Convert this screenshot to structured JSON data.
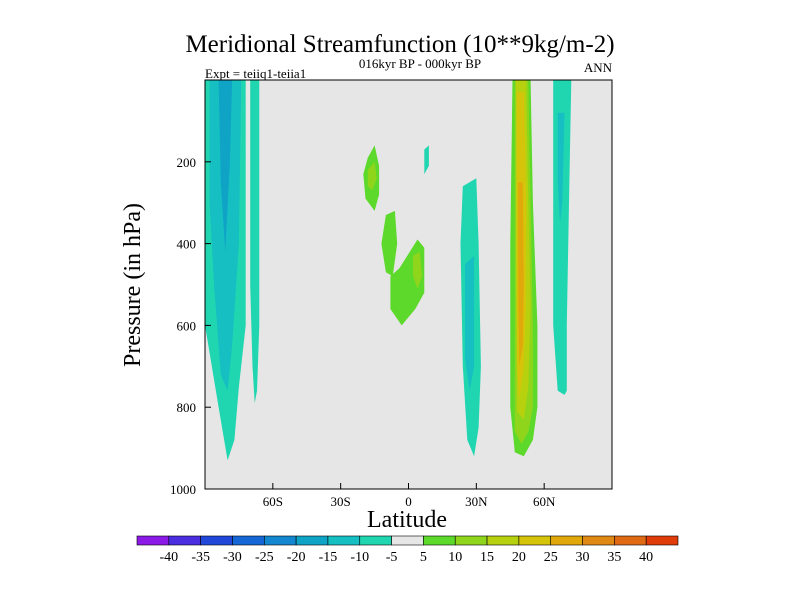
{
  "chart_data": {
    "type": "heatmap",
    "title": "Meridional Streamfunction (10**9kg/m-2)",
    "left_string": "Expt = teiiq1-teiia1",
    "center_string": "016kyr BP - 000kyr BP",
    "right_string": "ANN",
    "xlabel": "Latitude",
    "ylabel": "Pressure (in hPa)",
    "x_ticks": [
      {
        "value": -60,
        "label": "60S"
      },
      {
        "value": -30,
        "label": "30S"
      },
      {
        "value": 0,
        "label": "0"
      },
      {
        "value": 30,
        "label": "30N"
      },
      {
        "value": 60,
        "label": "60N"
      }
    ],
    "y_ticks": [
      {
        "value": 200,
        "label": "200"
      },
      {
        "value": 400,
        "label": "400"
      },
      {
        "value": 600,
        "label": "600"
      },
      {
        "value": 800,
        "label": "800"
      },
      {
        "value": 1000,
        "label": "1000"
      }
    ],
    "xlim": [
      -90,
      90
    ],
    "ylim": [
      0,
      1000
    ],
    "y_inverted": true,
    "background_color": "#e6e6e6",
    "colorbar": {
      "labels": [
        "-40",
        "-35",
        "-30",
        "-25",
        "-20",
        "-15",
        "-10",
        "-5",
        "5",
        "10",
        "15",
        "20",
        "25",
        "30",
        "35",
        "40"
      ],
      "colors": [
        "#8c1ae6",
        "#4a2ee0",
        "#2147d9",
        "#1567d6",
        "#1387cf",
        "#0fa3c6",
        "#16bfc1",
        "#20d6b0",
        "#e6e6e6",
        "#5cd92b",
        "#8fd51c",
        "#b7d10f",
        "#d6c40a",
        "#e0a80a",
        "#e08814",
        "#e06a14",
        "#e03c0a"
      ]
    },
    "regions": [
      {
        "name": "southern-band-outer",
        "level": -10,
        "points": [
          [
            -90,
            0
          ],
          [
            -72,
            0
          ],
          [
            -72,
            600
          ],
          [
            -75,
            750
          ],
          [
            -77,
            880
          ],
          [
            -80,
            930
          ],
          [
            -84,
            800
          ],
          [
            -87,
            700
          ],
          [
            -90,
            600
          ]
        ]
      },
      {
        "name": "southern-band-mid",
        "level": -15,
        "points": [
          [
            -88,
            0
          ],
          [
            -74,
            0
          ],
          [
            -75,
            400
          ],
          [
            -78,
            650
          ],
          [
            -80,
            760
          ],
          [
            -83,
            720
          ],
          [
            -86,
            500
          ],
          [
            -88,
            300
          ]
        ]
      },
      {
        "name": "southern-band-core",
        "level": -20,
        "points": [
          [
            -84,
            0
          ],
          [
            -78,
            0
          ],
          [
            -79,
            200
          ],
          [
            -81,
            420
          ],
          [
            -83,
            250
          ]
        ]
      },
      {
        "name": "southern-narrow-band",
        "level": -10,
        "points": [
          [
            -70,
            0
          ],
          [
            -66,
            0
          ],
          [
            -66,
            600
          ],
          [
            -67,
            760
          ],
          [
            -68,
            790
          ],
          [
            -69,
            700
          ],
          [
            -70,
            500
          ]
        ]
      },
      {
        "name": "tropical-plume-outer",
        "level": 5,
        "points": [
          [
            -12,
            0
          ],
          [
            -7,
            0
          ],
          [
            -6,
            150
          ],
          [
            -2,
            130
          ],
          [
            -1,
            50
          ],
          [
            1,
            50
          ],
          [
            2,
            140
          ],
          [
            8,
            130
          ],
          [
            8,
            60
          ],
          [
            12,
            90
          ],
          [
            14,
            180
          ],
          [
            12,
            270
          ],
          [
            11,
            330
          ],
          [
            9,
            380
          ],
          [
            10,
            600
          ],
          [
            8,
            750
          ],
          [
            7,
            900
          ],
          [
            5,
            890
          ],
          [
            4,
            880
          ],
          [
            3,
            930
          ],
          [
            0,
            940
          ],
          [
            -2,
            940
          ],
          [
            -5,
            910
          ],
          [
            -9,
            880
          ],
          [
            -12,
            780
          ],
          [
            -14,
            600
          ],
          [
            -14,
            430
          ],
          [
            -12,
            380
          ],
          [
            -16,
            300
          ],
          [
            -21,
            220
          ],
          [
            -21,
            150
          ],
          [
            -17,
            110
          ],
          [
            -13,
            90
          ]
        ]
      },
      {
        "name": "tropical-plume-inner-upper",
        "level": 10,
        "points": [
          [
            -18,
            190
          ],
          [
            -15,
            160
          ],
          [
            -13,
            210
          ],
          [
            -13,
            280
          ],
          [
            -15,
            320
          ],
          [
            -19,
            290
          ],
          [
            -20,
            230
          ]
        ]
      },
      {
        "name": "tropical-plume-inner-mid",
        "level": 10,
        "points": [
          [
            -10,
            330
          ],
          [
            -6,
            320
          ],
          [
            -5,
            400
          ],
          [
            -7,
            480
          ],
          [
            -10,
            470
          ],
          [
            -12,
            400
          ]
        ]
      },
      {
        "name": "tropical-plume-inner-lower",
        "level": 10,
        "points": [
          [
            -8,
            480
          ],
          [
            -4,
            460
          ],
          [
            4,
            390
          ],
          [
            7,
            410
          ],
          [
            7,
            520
          ],
          [
            3,
            560
          ],
          [
            -3,
            600
          ],
          [
            -8,
            560
          ]
        ]
      },
      {
        "name": "tropical-plume-core-upper",
        "level": 15,
        "points": [
          [
            -18,
            220
          ],
          [
            -15,
            200
          ],
          [
            -14,
            240
          ],
          [
            -16,
            270
          ],
          [
            -18,
            260
          ]
        ]
      },
      {
        "name": "tropical-plume-core-mid",
        "level": 15,
        "points": [
          [
            2,
            430
          ],
          [
            5,
            420
          ],
          [
            6,
            480
          ],
          [
            4,
            510
          ],
          [
            2,
            480
          ]
        ]
      },
      {
        "name": "tropical-gap",
        "level": 0,
        "points": [
          [
            7,
            640
          ],
          [
            10,
            640
          ],
          [
            10,
            650
          ],
          [
            7,
            650
          ]
        ]
      },
      {
        "name": "tropical-negative-upper",
        "level": -5,
        "points": [
          [
            8,
            130
          ],
          [
            12,
            100
          ],
          [
            12,
            180
          ],
          [
            8,
            230
          ],
          [
            5,
            220
          ],
          [
            5,
            170
          ]
        ]
      },
      {
        "name": "tropical-negative-core",
        "level": -10,
        "points": [
          [
            7,
            170
          ],
          [
            9,
            160
          ],
          [
            9,
            210
          ],
          [
            7,
            230
          ]
        ]
      },
      {
        "name": "midlat-negative-outer",
        "level": -10,
        "points": [
          [
            24,
            260
          ],
          [
            30,
            240
          ],
          [
            31,
            400
          ],
          [
            32,
            700
          ],
          [
            31,
            850
          ],
          [
            29,
            920
          ],
          [
            26,
            880
          ],
          [
            24,
            700
          ],
          [
            23,
            400
          ]
        ]
      },
      {
        "name": "midlat-negative-core",
        "level": -15,
        "points": [
          [
            25,
            450
          ],
          [
            29,
            430
          ],
          [
            29,
            700
          ],
          [
            27,
            760
          ],
          [
            25,
            680
          ]
        ]
      },
      {
        "name": "northern-plume-outer",
        "level": 5,
        "points": [
          [
            44,
            0
          ],
          [
            55,
            0
          ],
          [
            57,
            300
          ],
          [
            59,
            600
          ],
          [
            60,
            800
          ],
          [
            57,
            900
          ],
          [
            54,
            940
          ],
          [
            50,
            960
          ],
          [
            47,
            960
          ],
          [
            44,
            940
          ],
          [
            43,
            800
          ],
          [
            43,
            400
          ]
        ]
      },
      {
        "name": "northern-plume-l10",
        "level": 10,
        "points": [
          [
            46,
            0
          ],
          [
            54,
            0
          ],
          [
            55,
            300
          ],
          [
            57,
            600
          ],
          [
            57,
            800
          ],
          [
            55,
            880
          ],
          [
            51,
            920
          ],
          [
            47,
            910
          ],
          [
            45,
            800
          ],
          [
            45,
            400
          ]
        ]
      },
      {
        "name": "northern-plume-l15",
        "level": 15,
        "points": [
          [
            47,
            0
          ],
          [
            53,
            0
          ],
          [
            54,
            300
          ],
          [
            55,
            600
          ],
          [
            55,
            800
          ],
          [
            53,
            860
          ],
          [
            50,
            890
          ],
          [
            47,
            860
          ],
          [
            47,
            400
          ]
        ]
      },
      {
        "name": "northern-plume-l20",
        "level": 20,
        "points": [
          [
            47.5,
            0
          ],
          [
            52,
            0
          ],
          [
            53,
            300
          ],
          [
            54,
            550
          ],
          [
            53,
            750
          ],
          [
            51,
            830
          ],
          [
            48,
            810
          ],
          [
            47.5,
            400
          ]
        ]
      },
      {
        "name": "northern-plume-l25",
        "level": 25,
        "points": [
          [
            48,
            30
          ],
          [
            51,
            30
          ],
          [
            52,
            300
          ],
          [
            52,
            550
          ],
          [
            51,
            700
          ],
          [
            49,
            780
          ],
          [
            48,
            700
          ],
          [
            48,
            400
          ]
        ]
      },
      {
        "name": "northern-plume-l30",
        "level": 30,
        "points": [
          [
            48.5,
            250
          ],
          [
            50.5,
            250
          ],
          [
            51,
            500
          ],
          [
            50.5,
            650
          ],
          [
            49,
            700
          ],
          [
            48.5,
            550
          ]
        ]
      },
      {
        "name": "northern-negative-band",
        "level": -10,
        "points": [
          [
            64,
            0
          ],
          [
            72,
            0
          ],
          [
            71,
            300
          ],
          [
            70,
            600
          ],
          [
            70,
            760
          ],
          [
            69,
            770
          ],
          [
            66,
            760
          ],
          [
            64,
            600
          ]
        ]
      },
      {
        "name": "northern-negative-core",
        "level": -15,
        "points": [
          [
            66,
            80
          ],
          [
            69,
            80
          ],
          [
            68,
            300
          ],
          [
            67,
            350
          ],
          [
            66,
            250
          ]
        ]
      }
    ]
  }
}
